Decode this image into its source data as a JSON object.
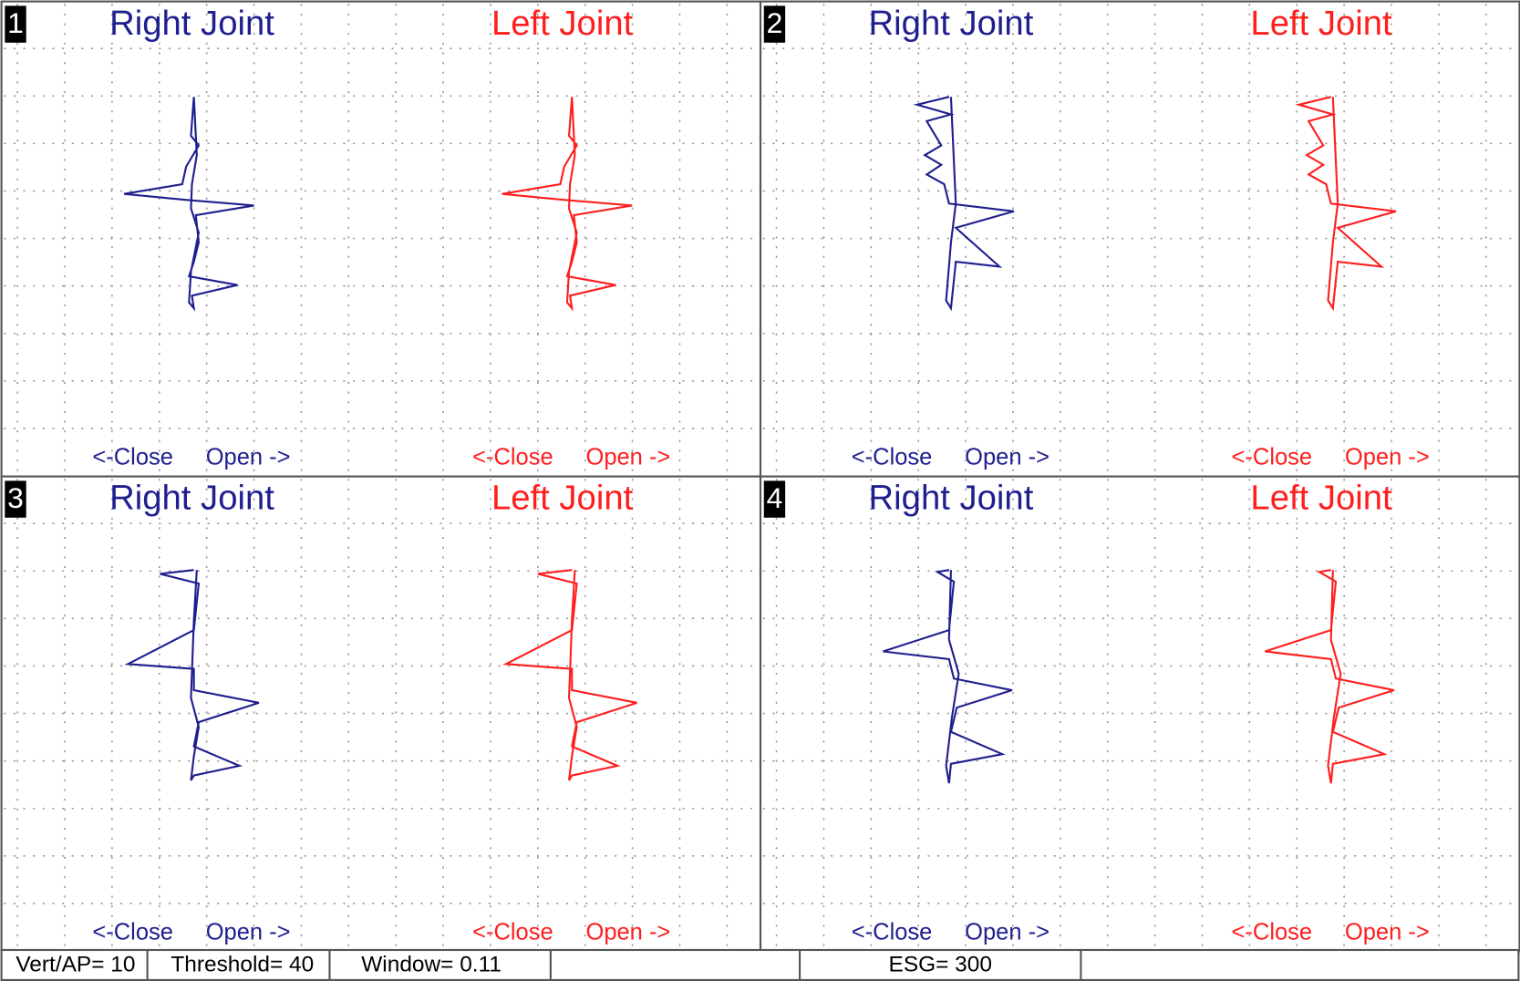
{
  "panels": [
    {
      "number": "1",
      "right_title": "Right Joint",
      "left_title": "Left Joint",
      "right_close": "<-Close",
      "right_open": "Open ->",
      "left_close": "<-Close",
      "left_open": "Open ->"
    },
    {
      "number": "2",
      "right_title": "Right Joint",
      "left_title": "Left Joint",
      "right_close": "<-Close",
      "right_open": "Open ->",
      "left_close": "<-Close",
      "left_open": "Open ->"
    },
    {
      "number": "3",
      "right_title": "Right Joint",
      "left_title": "Left Joint",
      "right_close": "<-Close",
      "right_open": "Open ->",
      "left_close": "<-Close",
      "left_open": "Open ->"
    },
    {
      "number": "4",
      "right_title": "Right Joint",
      "left_title": "Left Joint",
      "right_close": "<-Close",
      "right_open": "Open ->",
      "left_close": "<-Close",
      "left_open": "Open ->"
    }
  ],
  "status_bar": [
    "Vert/AP= 10",
    "Threshold= 40",
    "Window= 0.11",
    "ESG= 300"
  ]
}
